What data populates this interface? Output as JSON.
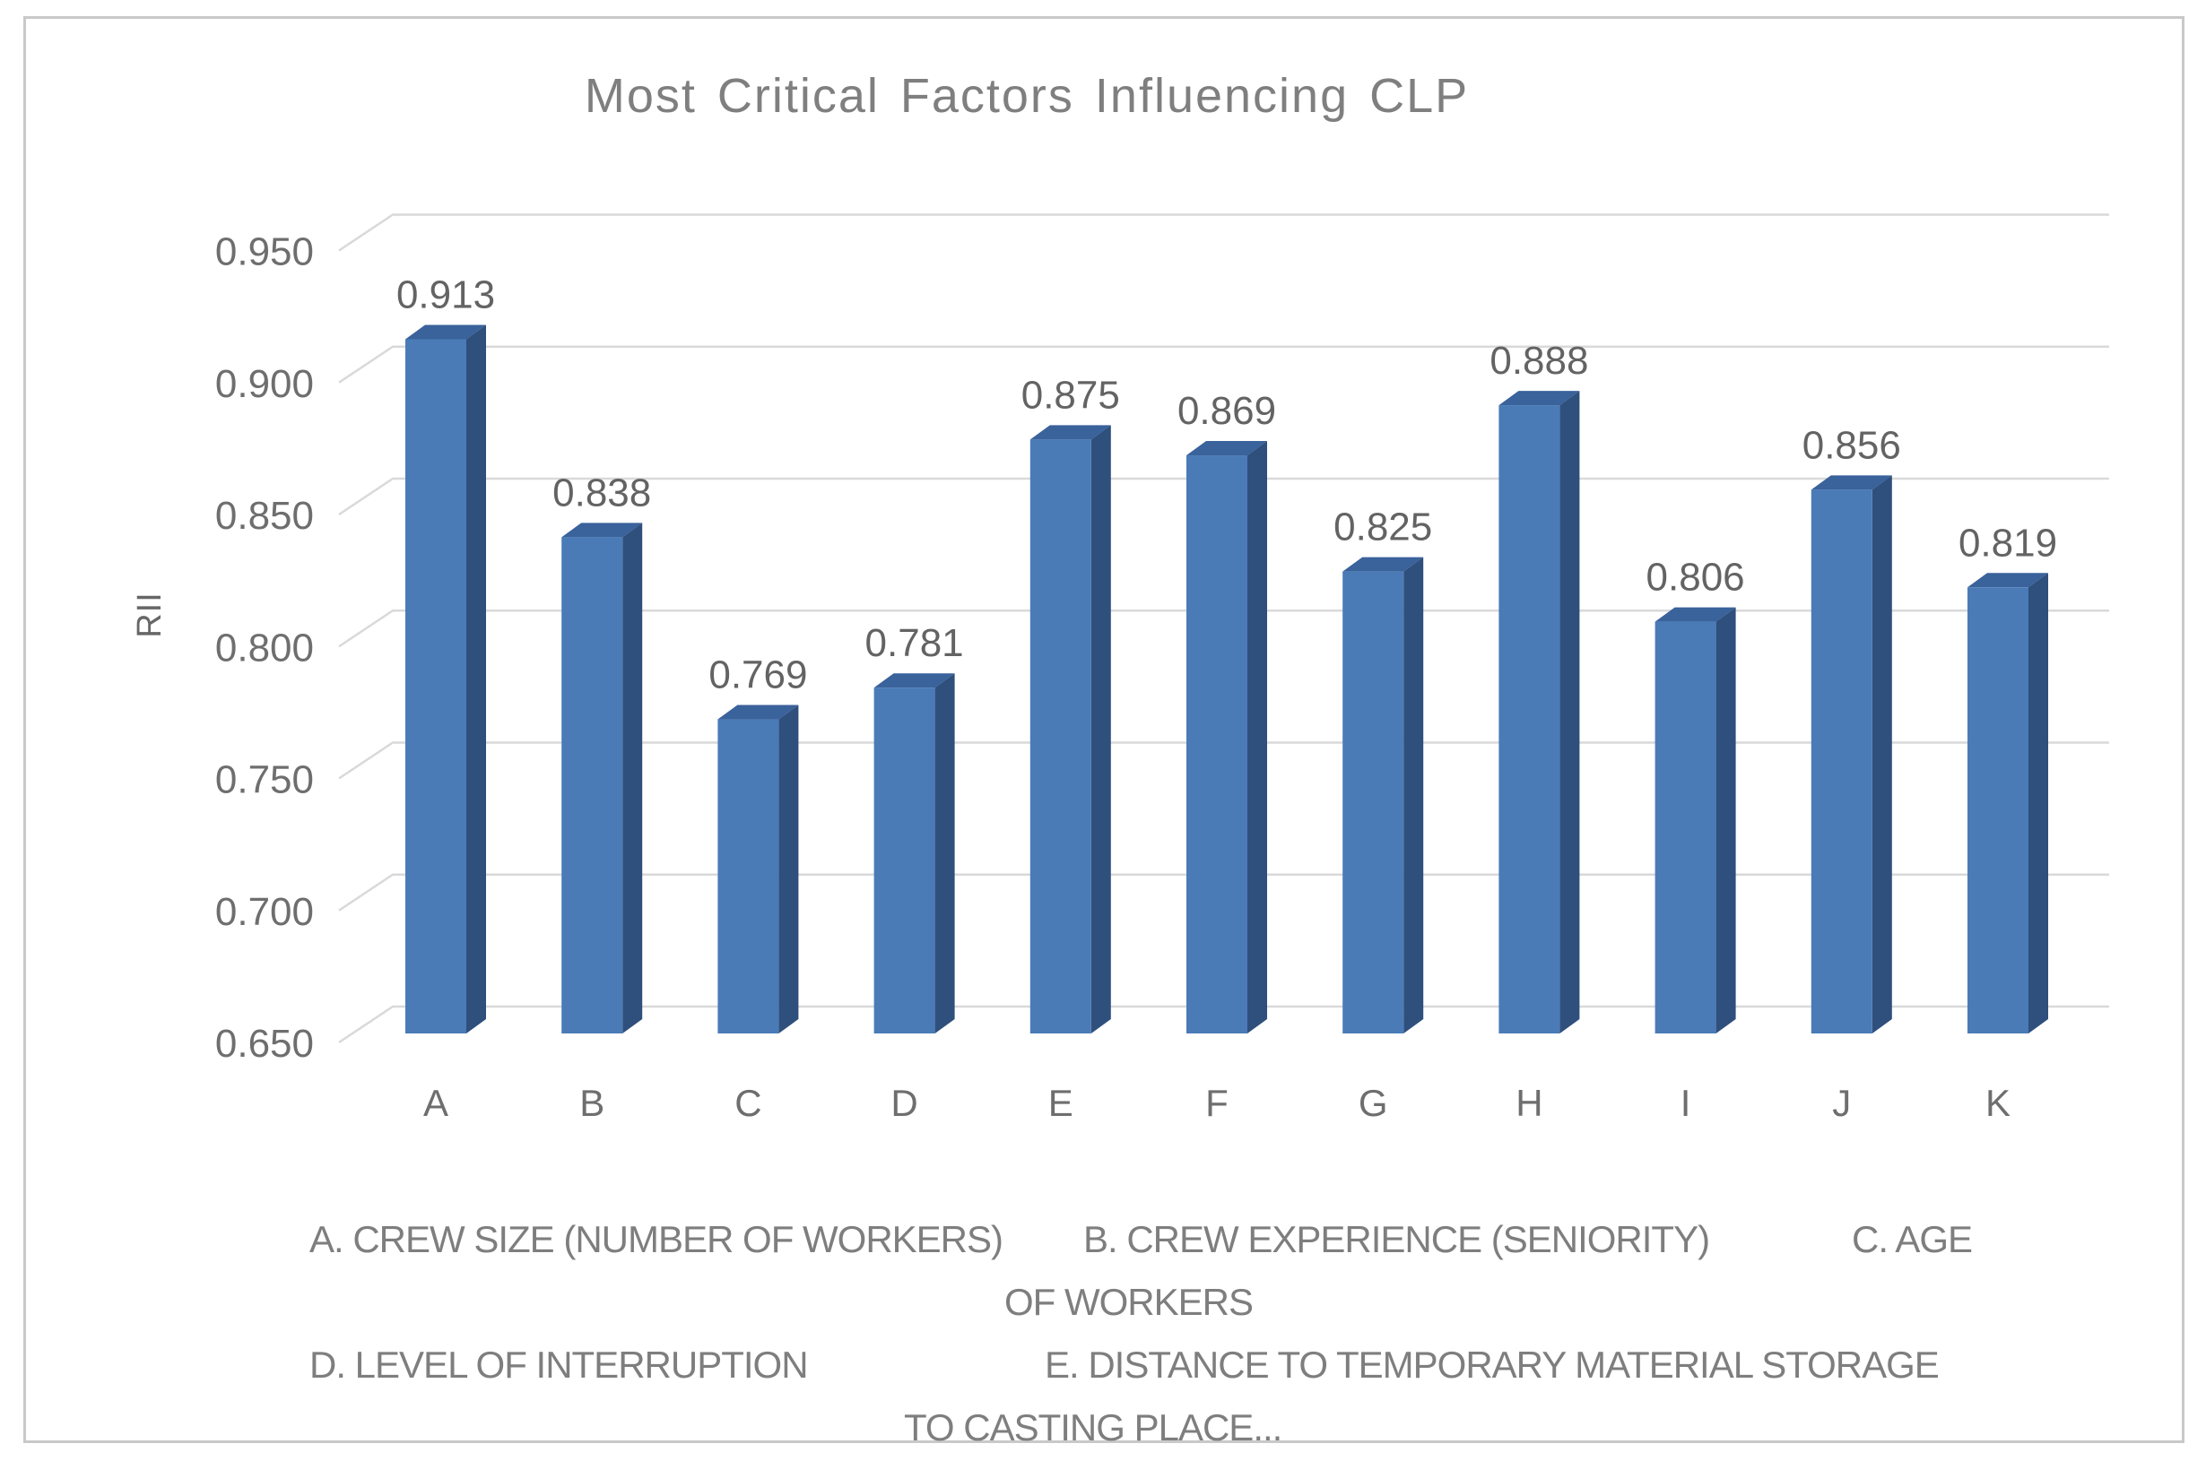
{
  "chart_data": {
    "type": "bar",
    "style": "3d-column",
    "title": "Most Critical Factors Influencing CLP",
    "categories": [
      "A",
      "B",
      "C",
      "D",
      "E",
      "F",
      "G",
      "H",
      "I",
      "J",
      "K"
    ],
    "values": [
      0.913,
      0.838,
      0.769,
      0.781,
      0.875,
      0.869,
      0.825,
      0.888,
      0.806,
      0.856,
      0.819
    ],
    "value_labels": [
      "0.913",
      "0.838",
      "0.769",
      "0.781",
      "0.875",
      "0.869",
      "0.825",
      "0.888",
      "0.806",
      "0.856",
      "0.819"
    ],
    "xlabel": "",
    "ylabel": "RII",
    "ylim": [
      0.65,
      0.95
    ],
    "ytick_labels": [
      "0.650",
      "0.700",
      "0.750",
      "0.800",
      "0.850",
      "0.900",
      "0.950"
    ],
    "grid": true,
    "legend": "none",
    "colors": {
      "bar_front": "#4A7BB7",
      "bar_top": "#3A629B",
      "bar_side": "#2F4F7D",
      "gridline": "#D9D9D9",
      "tick_text": "#6E6E6E",
      "data_label_text": "#636363",
      "title_text": "#7F7F7F",
      "caption_text": "#7E7E7E",
      "frame_border": "#C9C9C9"
    }
  },
  "captions": {
    "line1a": "A. CREW SIZE (NUMBER OF WORKERS)",
    "line1b": "B. CREW EXPERIENCE (SENIORITY)",
    "line1c": "C. AGE",
    "line2": "OF WORKERS",
    "line3a": "D. LEVEL OF INTERRUPTION",
    "line3b": "E. DISTANCE TO TEMPORARY MATERIAL STORAGE",
    "line4": "TO CASTING PLACE..."
  }
}
